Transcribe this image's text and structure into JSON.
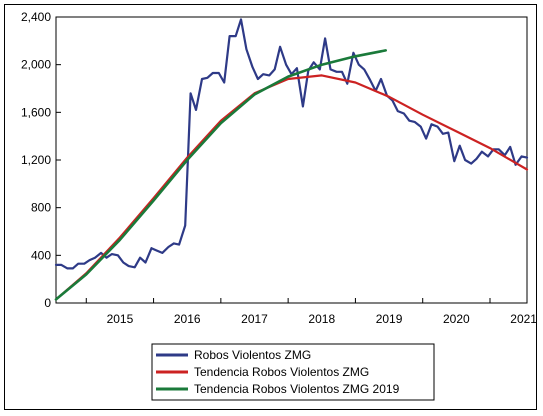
{
  "chart_data": {
    "type": "line",
    "x_axis": {
      "tick_labels": [
        "2015",
        "2016",
        "2017",
        "2018",
        "2019",
        "2020",
        "2021"
      ],
      "range": [
        2014.55,
        2021.55
      ]
    },
    "y_axis": {
      "tick_labels": [
        "0",
        "400",
        "800",
        "1,200",
        "1,600",
        "2,000",
        "2,400"
      ],
      "tick_values": [
        0,
        400,
        800,
        1200,
        1600,
        2000,
        2400
      ],
      "range": [
        0,
        2400
      ]
    },
    "grid": false,
    "legend_position": "bottom",
    "series": [
      {
        "name": "Robos Violentos ZMG",
        "color": "#2e3a87",
        "points": [
          [
            2014.55,
            320
          ],
          [
            2014.63,
            320
          ],
          [
            2014.72,
            290
          ],
          [
            2014.8,
            290
          ],
          [
            2014.88,
            330
          ],
          [
            2014.97,
            330
          ],
          [
            2015.05,
            360
          ],
          [
            2015.13,
            380
          ],
          [
            2015.22,
            420
          ],
          [
            2015.3,
            380
          ],
          [
            2015.38,
            410
          ],
          [
            2015.47,
            400
          ],
          [
            2015.55,
            340
          ],
          [
            2015.63,
            310
          ],
          [
            2015.72,
            300
          ],
          [
            2015.8,
            380
          ],
          [
            2015.88,
            340
          ],
          [
            2015.97,
            460
          ],
          [
            2016.05,
            440
          ],
          [
            2016.13,
            420
          ],
          [
            2016.22,
            470
          ],
          [
            2016.3,
            500
          ],
          [
            2016.38,
            490
          ],
          [
            2016.47,
            650
          ],
          [
            2016.55,
            1760
          ],
          [
            2016.63,
            1620
          ],
          [
            2016.72,
            1880
          ],
          [
            2016.8,
            1890
          ],
          [
            2016.88,
            1930
          ],
          [
            2016.97,
            1930
          ],
          [
            2017.05,
            1850
          ],
          [
            2017.13,
            2240
          ],
          [
            2017.22,
            2240
          ],
          [
            2017.3,
            2380
          ],
          [
            2017.38,
            2130
          ],
          [
            2017.47,
            1980
          ],
          [
            2017.55,
            1880
          ],
          [
            2017.63,
            1920
          ],
          [
            2017.72,
            1910
          ],
          [
            2017.8,
            1960
          ],
          [
            2017.88,
            2150
          ],
          [
            2017.97,
            2000
          ],
          [
            2018.05,
            1920
          ],
          [
            2018.13,
            1970
          ],
          [
            2018.22,
            1650
          ],
          [
            2018.3,
            1950
          ],
          [
            2018.38,
            2020
          ],
          [
            2018.47,
            1960
          ],
          [
            2018.55,
            2220
          ],
          [
            2018.63,
            1960
          ],
          [
            2018.72,
            1940
          ],
          [
            2018.8,
            1940
          ],
          [
            2018.88,
            1840
          ],
          [
            2018.97,
            2100
          ],
          [
            2019.05,
            2000
          ],
          [
            2019.13,
            1960
          ],
          [
            2019.22,
            1870
          ],
          [
            2019.3,
            1780
          ],
          [
            2019.38,
            1880
          ],
          [
            2019.47,
            1740
          ],
          [
            2019.55,
            1700
          ],
          [
            2019.63,
            1610
          ],
          [
            2019.72,
            1590
          ],
          [
            2019.8,
            1530
          ],
          [
            2019.88,
            1520
          ],
          [
            2019.97,
            1480
          ],
          [
            2020.05,
            1380
          ],
          [
            2020.13,
            1500
          ],
          [
            2020.22,
            1480
          ],
          [
            2020.3,
            1420
          ],
          [
            2020.38,
            1430
          ],
          [
            2020.47,
            1190
          ],
          [
            2020.55,
            1320
          ],
          [
            2020.63,
            1200
          ],
          [
            2020.72,
            1170
          ],
          [
            2020.8,
            1210
          ],
          [
            2020.88,
            1270
          ],
          [
            2020.97,
            1230
          ],
          [
            2021.05,
            1290
          ],
          [
            2021.13,
            1290
          ],
          [
            2021.22,
            1240
          ],
          [
            2021.3,
            1310
          ],
          [
            2021.38,
            1160
          ],
          [
            2021.47,
            1230
          ],
          [
            2021.55,
            1220
          ]
        ]
      },
      {
        "name": "Tendencia Robos Violentos ZMG",
        "color": "#cc2222",
        "points": [
          [
            2014.55,
            30
          ],
          [
            2015.0,
            250
          ],
          [
            2015.5,
            550
          ],
          [
            2016.0,
            880
          ],
          [
            2016.5,
            1220
          ],
          [
            2017.0,
            1530
          ],
          [
            2017.5,
            1760
          ],
          [
            2018.0,
            1880
          ],
          [
            2018.5,
            1910
          ],
          [
            2019.0,
            1850
          ],
          [
            2019.5,
            1730
          ],
          [
            2020.0,
            1580
          ],
          [
            2020.5,
            1440
          ],
          [
            2021.0,
            1300
          ],
          [
            2021.55,
            1120
          ]
        ]
      },
      {
        "name": "Tendencia Robos Violentos ZMG 2019",
        "color": "#1a7a3a",
        "points": [
          [
            2014.55,
            30
          ],
          [
            2015.0,
            240
          ],
          [
            2015.5,
            530
          ],
          [
            2016.0,
            860
          ],
          [
            2016.5,
            1200
          ],
          [
            2017.0,
            1510
          ],
          [
            2017.5,
            1750
          ],
          [
            2018.0,
            1900
          ],
          [
            2018.5,
            2000
          ],
          [
            2019.0,
            2070
          ],
          [
            2019.45,
            2120
          ]
        ]
      }
    ]
  }
}
